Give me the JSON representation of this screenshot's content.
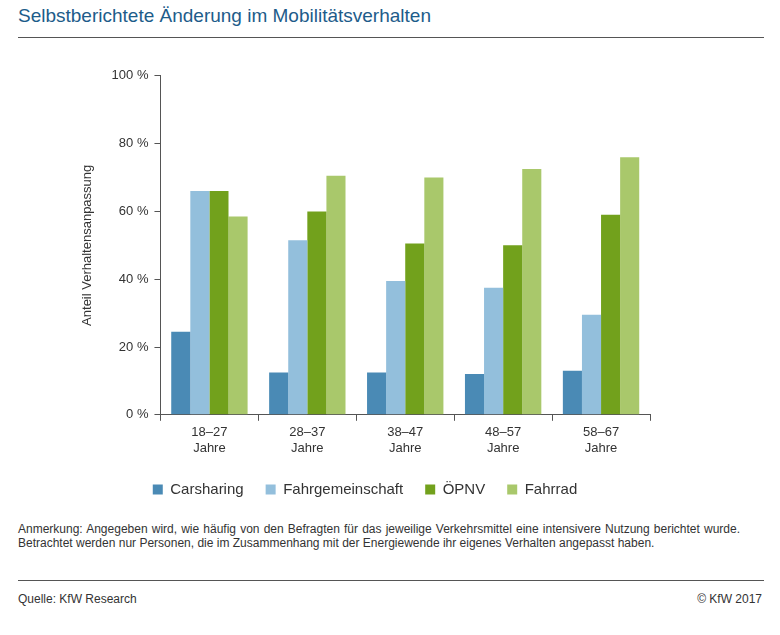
{
  "chart_data": {
    "type": "bar",
    "title": "Selbstberichtete Änderung  im Mobilitätsverhalten",
    "y_label": "Anteil Verhaltensanpassung",
    "categories": [
      "18–27 Jahre",
      "28–37 Jahre",
      "38–47 Jahre",
      "48–57 Jahre",
      "58–67 Jahre"
    ],
    "series": [
      {
        "name": "Carsharing",
        "color": "#4a8ab5",
        "values": [
          24.5,
          12.5,
          12.5,
          12,
          13
        ]
      },
      {
        "name": "Fahrgemeinschaft",
        "color": "#93bfdc",
        "values": [
          66,
          51.5,
          39.5,
          37.5,
          29.5
        ]
      },
      {
        "name": "ÖPNV",
        "color": "#72a11c",
        "values": [
          66,
          60,
          50.5,
          50,
          59
        ]
      },
      {
        "name": "Fahrrad",
        "color": "#a9c86b",
        "values": [
          58.5,
          70.5,
          70,
          72.5,
          76
        ]
      }
    ],
    "ylim": [
      0,
      100
    ],
    "yticks": [
      {
        "value": 0,
        "label": "0 %"
      },
      {
        "value": 20,
        "label": "20 %"
      },
      {
        "value": 40,
        "label": "40 %"
      },
      {
        "value": 60,
        "label": "60 %"
      },
      {
        "value": 80,
        "label": "80 %"
      },
      {
        "value": 100,
        "label": "100 %"
      }
    ],
    "grid": false,
    "legend": "bottom",
    "note": "Anmerkung: Angegeben wird, wie häufig von den Befragten für das jeweilige Verkehrsmittel eine intensivere Nutzung berichtet wurde. Betrachtet werden nur Personen, die im Zusammenhang  mit der Energiewende  ihr eigenes Verhalten angepasst haben.",
    "source": "Quelle: KfW Research",
    "copyright": "© KfW 2017"
  }
}
